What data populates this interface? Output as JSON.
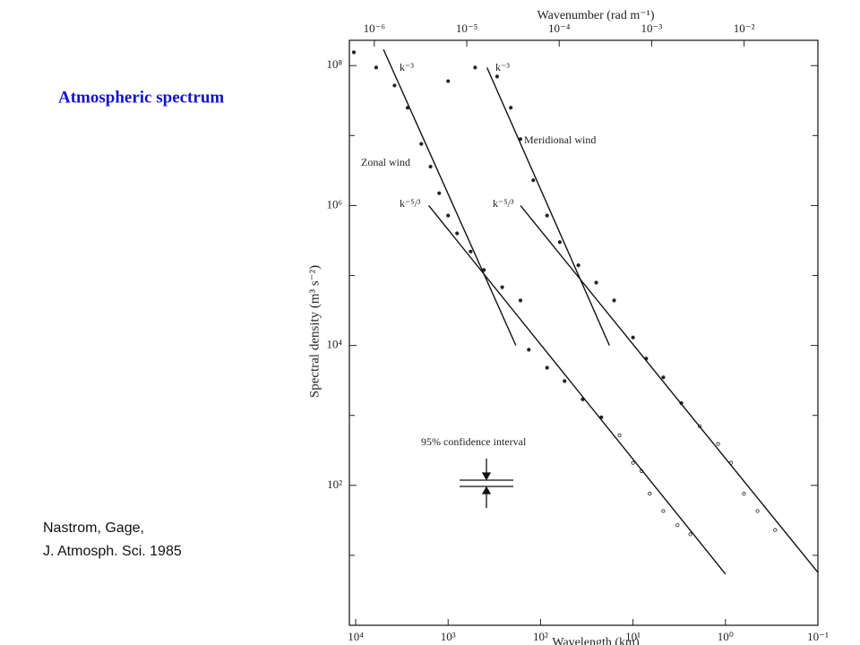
{
  "slide": {
    "title": "Atmospheric spectrum",
    "citation": [
      "Nastrom, Gage,",
      "J. Atmosph. Sci. 1985"
    ]
  },
  "chart_data": {
    "type": "scatter",
    "x_label": "Wavelength (km)",
    "x2_label": "Wavenumber (rad m⁻¹)",
    "y_label": "Spectral density (m³ s⁻²)",
    "xlog": true,
    "ylog": true,
    "xlim": [
      11700,
      0.1
    ],
    "ylim": [
      1,
      230000000
    ],
    "xticks": [
      {
        "value": 10000,
        "label": "10⁴"
      },
      {
        "value": 1000,
        "label": "10³"
      },
      {
        "value": 100,
        "label": "10²"
      },
      {
        "value": 10,
        "label": "10¹"
      },
      {
        "value": 1,
        "label": "10⁰"
      },
      {
        "value": 0.1,
        "label": "10⁻¹"
      }
    ],
    "x2ticks": [
      {
        "value": 1e-06,
        "label": "10⁻⁶"
      },
      {
        "value": 1e-05,
        "label": "10⁻⁵"
      },
      {
        "value": 0.0001,
        "label": "10⁻⁴"
      },
      {
        "value": 0.001,
        "label": "10⁻³"
      },
      {
        "value": 0.01,
        "label": "10⁻²"
      }
    ],
    "yticks": [
      {
        "value": 100000000,
        "label": "10⁸"
      },
      {
        "value": 1000000,
        "label": "10⁶"
      },
      {
        "value": 10000,
        "label": "10⁴"
      },
      {
        "value": 100,
        "label": "10²"
      }
    ],
    "yminor": [
      10000000,
      100000,
      1000,
      10
    ],
    "annotation": "95% confidence interval",
    "series": [
      {
        "name": "Zonal wind",
        "color": "#222222",
        "mode": "markers",
        "x": [
          10471,
          6000,
          3800,
          2740,
          1950,
          1550,
          1250,
          1000,
          800,
          570,
          410,
          260,
          165,
          134,
          85,
          55,
          35,
          22,
          14,
          10,
          8.1,
          6.6,
          4.7,
          3.3,
          2.4
        ],
        "values": [
          155000000,
          94000000,
          52000000,
          25000000,
          7600000,
          3600000,
          1500000,
          720000,
          400000,
          220000,
          120000,
          68000,
          44000,
          8700,
          4800,
          3100,
          1700,
          940,
          520,
          210,
          160,
          76,
          43,
          27,
          20
        ]
      },
      {
        "name": "Meridional wind",
        "color": "#222222",
        "mode": "markers",
        "x": [
          1000,
          510,
          295,
          210,
          165,
          120,
          85,
          62,
          39,
          25,
          16,
          10,
          7.2,
          4.7,
          3.0,
          1.9,
          1.2,
          0.87,
          0.63,
          0.45,
          0.29
        ],
        "values": [
          60000000,
          94000000,
          70000000,
          25000000,
          8900000,
          2300000,
          720000,
          300000,
          140000,
          79000,
          44000,
          13000,
          6500,
          3500,
          1500,
          700,
          390,
          210,
          76,
          43,
          23
        ]
      },
      {
        "name": "k⁻³",
        "color": "#111111",
        "mode": "line",
        "x": [
          5000,
          185
        ],
        "values": [
          170000000,
          10000
        ]
      },
      {
        "name": "k⁻⁵/³",
        "color": "#111111",
        "mode": "line",
        "x": [
          1620,
          1.0
        ],
        "values": [
          1000000,
          5.4
        ]
      },
      {
        "name": "k⁻³",
        "color": "#111111",
        "mode": "line",
        "x": [
          380,
          18
        ],
        "values": [
          94000000,
          10000
        ]
      },
      {
        "name": "k⁻⁵/³",
        "color": "#111111",
        "mode": "line",
        "x": [
          165,
          0.1
        ],
        "values": [
          1000000,
          5.7
        ]
      }
    ]
  }
}
